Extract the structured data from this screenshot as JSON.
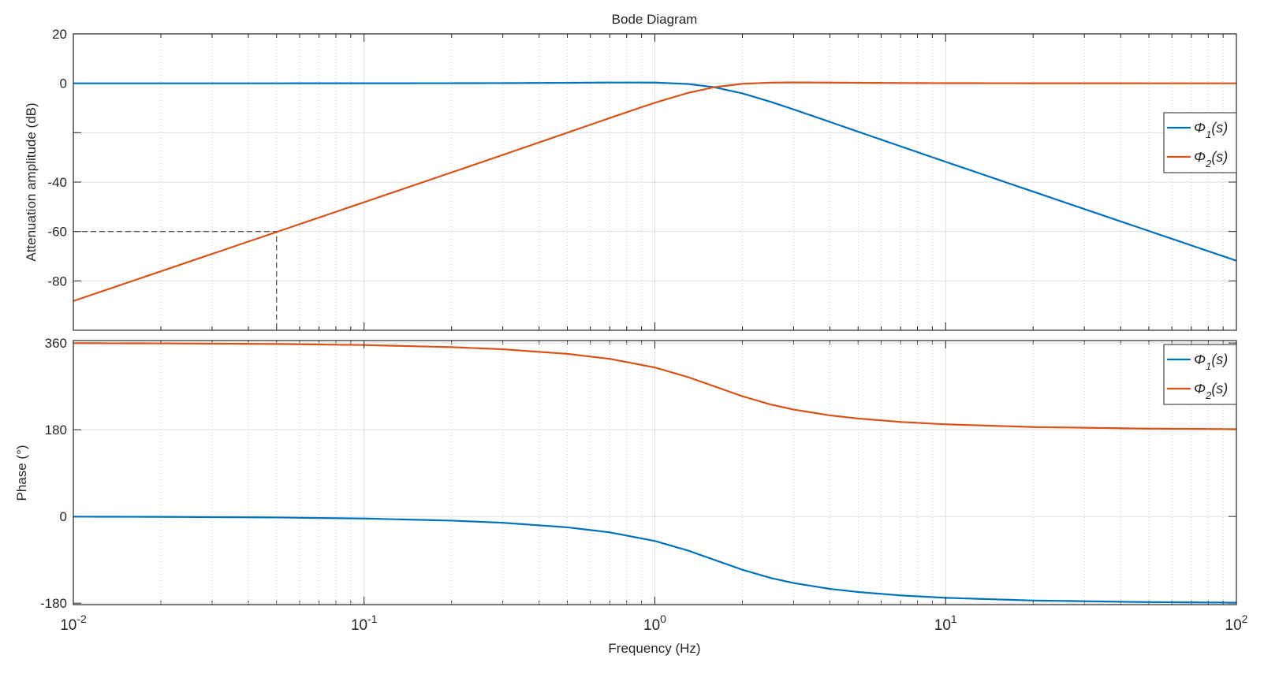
{
  "chart_data": [
    {
      "type": "line",
      "title": "Bode Diagram",
      "xlabel": "Frequency  (Hz)",
      "ylabel": "Attenuation amplitude (dB)",
      "xscale": "log",
      "xlim": [
        0.01,
        100
      ],
      "ylim": [
        -100,
        20
      ],
      "yticks": [
        20,
        0,
        -40,
        -60,
        -80
      ],
      "grid": true,
      "legend_position": "right",
      "x": [
        0.01,
        0.02,
        0.05,
        0.1,
        0.2,
        0.3,
        0.5,
        0.7,
        1,
        1.3,
        1.6,
        2,
        2.5,
        3,
        4,
        5,
        7,
        10,
        20,
        50,
        100
      ],
      "series": [
        {
          "name": "Φ1(s)",
          "name_base": "Φ",
          "name_sub": "1",
          "name_tail": "(s)",
          "color": "#0072BD",
          "values": [
            0,
            0,
            0,
            0.01,
            0.04,
            0.08,
            0.2,
            0.32,
            0.3,
            -0.28,
            -1.58,
            -4.09,
            -7.48,
            -10.57,
            -15.63,
            -19.59,
            -25.52,
            -31.78,
            -43.86,
            -59.79,
            -71.83
          ]
        },
        {
          "name": "Φ2(s)",
          "name_base": "Φ",
          "name_sub": "2",
          "name_tail": "(s)",
          "color": "#D95319",
          "values": [
            -88.16,
            -76.12,
            -60.2,
            -48.15,
            -36.08,
            -29.0,
            -20.0,
            -14.04,
            -7.86,
            -3.89,
            -1.58,
            -0.21,
            0.27,
            0.35,
            0.29,
            0.21,
            0.12,
            0.06,
            0.02,
            0,
            0
          ]
        }
      ],
      "annotation": {
        "x": 0.05,
        "y": -60,
        "style": "dashed"
      }
    },
    {
      "type": "line",
      "xlabel": "Frequency  (Hz)",
      "ylabel": "Phase (°)",
      "xscale": "log",
      "xlim": [
        0.01,
        100
      ],
      "ylim": [
        -183,
        365
      ],
      "yticks": [
        360,
        180,
        0,
        -180
      ],
      "xticks": [
        {
          "base": "10",
          "exp": "-2",
          "value": 0.01
        },
        {
          "base": "10",
          "exp": "-1",
          "value": 0.1
        },
        {
          "base": "10",
          "exp": "0",
          "value": 1
        },
        {
          "base": "10",
          "exp": "1",
          "value": 10
        },
        {
          "base": "10",
          "exp": "2",
          "value": 100
        }
      ],
      "grid": true,
      "legend_position": "top-right",
      "x": [
        0.01,
        0.02,
        0.05,
        0.1,
        0.2,
        0.3,
        0.5,
        0.7,
        1,
        1.3,
        1.6,
        2,
        2.5,
        3,
        4,
        5,
        7,
        10,
        20,
        50,
        100
      ],
      "series": [
        {
          "name": "Φ1(s)",
          "name_base": "Φ",
          "name_sub": "1",
          "name_tail": "(s)",
          "color": "#0072BD",
          "values": [
            -0.43,
            -0.86,
            -2.15,
            -4.31,
            -8.67,
            -13.1,
            -22.6,
            -33.0,
            -50.9,
            -70.8,
            -90,
            -110.6,
            -127.6,
            -138.2,
            -150.3,
            -156.8,
            -163.9,
            -168.85,
            -174.48,
            -177.8,
            -178.9
          ]
        },
        {
          "name": "Φ2(s)",
          "name_base": "Φ",
          "name_sub": "2",
          "name_tail": "(s)",
          "color": "#D95319",
          "values": [
            359.57,
            359.14,
            357.85,
            355.69,
            351.33,
            346.9,
            337.4,
            327.0,
            309.1,
            289.2,
            270,
            249.4,
            232.4,
            221.8,
            209.7,
            203.2,
            196.1,
            191.15,
            185.52,
            182.2,
            181.1
          ]
        }
      ]
    }
  ]
}
